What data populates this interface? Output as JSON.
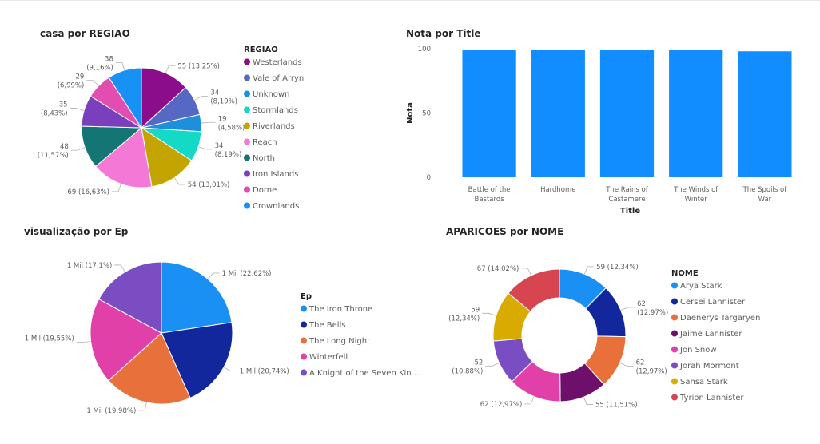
{
  "chart_data": [
    {
      "type": "pie",
      "title": "casa por REGIAO",
      "legend_title": "REGIAO",
      "legend_position": "right",
      "categories": [
        "Westerlands",
        "Vale of Arryn",
        "Unknown",
        "Stormlands",
        "Riverlands",
        "Reach",
        "North",
        "Iron Islands",
        "Dorne",
        "Crownlands"
      ],
      "values": [
        55,
        34,
        19,
        34,
        54,
        69,
        48,
        35,
        29,
        38
      ],
      "data_labels": [
        "55 (13,25%)",
        "34 (8,19%)",
        "19 (4,58%)",
        "34 (8,19%)",
        "54 (13,01%)",
        "69 (16,63%)",
        "48 (11,57%)",
        "35 (8,43%)",
        "29 (6,99%)",
        "38 (9,16%)"
      ],
      "colors": [
        "#8b0d8b",
        "#5568c4",
        "#1d8fdb",
        "#14d9c7",
        "#c4a400",
        "#f479d6",
        "#137574",
        "#7a3fbd",
        "#e24db2",
        "#1791f4"
      ]
    },
    {
      "type": "bar",
      "title": "Nota por Title",
      "xlabel": "Title",
      "ylabel": "Nota",
      "categories": [
        "Battle of the Bastards",
        "Hardhome",
        "The Rains of Castamere",
        "The Winds of Winter",
        "The Spoils of War"
      ],
      "values": [
        99,
        99,
        99,
        99,
        98
      ],
      "yticks": [
        "0",
        "50",
        "100"
      ],
      "ylim": [
        0,
        100
      ],
      "color": "#118dff"
    },
    {
      "type": "pie",
      "title": "visualização por Ep",
      "legend_title": "Ep",
      "legend_position": "right",
      "categories": [
        "The Iron Throne",
        "The Bells",
        "The Long Night",
        "Winterfell",
        "A Knight of the Seven Kin..."
      ],
      "values": [
        22.62,
        20.74,
        19.98,
        19.55,
        17.1
      ],
      "data_labels": [
        "1 Mil (22,62%)",
        "1 Mil (20,74%)",
        "1 Mil (19,98%)",
        "1 Mil (19,55%)",
        "1 Mil (17,1%)"
      ],
      "colors": [
        "#1a8ff4",
        "#13279c",
        "#e8703a",
        "#e040a7",
        "#7b4dc3"
      ]
    },
    {
      "type": "pie",
      "subtype": "donut",
      "title": "APARICOES por NOME",
      "legend_title": "NOME",
      "legend_position": "right",
      "categories": [
        "Arya Stark",
        "Cersei Lannister",
        "Daenerys Targaryen",
        "Jaime Lannister",
        "Jon Snow",
        "Jorah Mormont",
        "Sansa Stark",
        "Tyrion Lannister"
      ],
      "values": [
        59,
        62,
        62,
        55,
        62,
        52,
        59,
        67
      ],
      "data_labels": [
        "59 (12,34%)",
        "62 (12,97%)",
        "62 (12,97%)",
        "55 (11,51%)",
        "62 (12,97%)",
        "52 (10,88%)",
        "59 (12,34%)",
        "67 (14,02%)"
      ],
      "colors": [
        "#1a8ff4",
        "#13279c",
        "#e8703a",
        "#6d0f6b",
        "#e040a7",
        "#7b4dc3",
        "#d9ab00",
        "#d64550"
      ]
    }
  ]
}
